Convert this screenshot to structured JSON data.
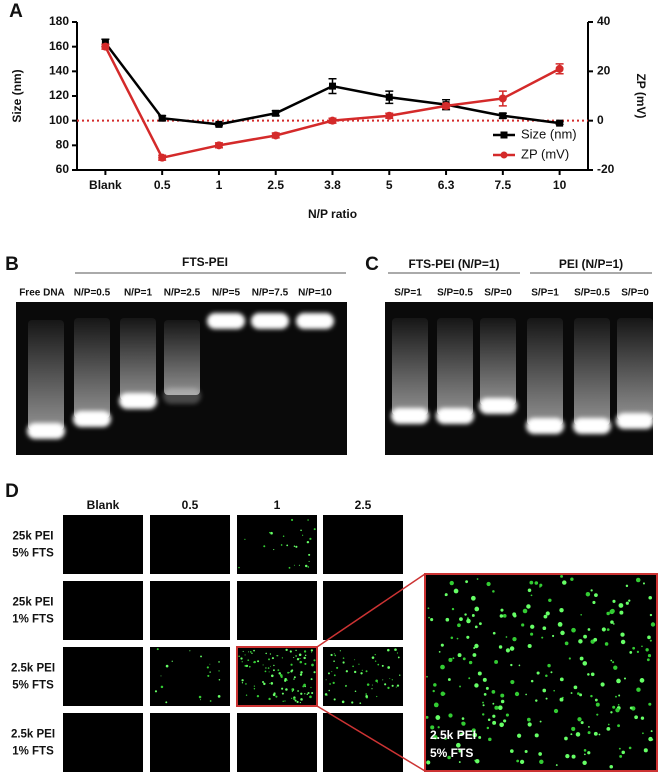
{
  "chart_data": {
    "type": "line",
    "panel_label": "A",
    "x_label": "N/P ratio",
    "y_label": "Size (nm)",
    "y2_label": "ZP (mV)",
    "categories": [
      "Blank",
      "0.5",
      "1",
      "2.5",
      "3.8",
      "5",
      "6.3",
      "7.5",
      "10"
    ],
    "ylim": [
      60,
      180
    ],
    "yticks": [
      60,
      80,
      100,
      120,
      140,
      160,
      180
    ],
    "y2lim": [
      -20,
      40
    ],
    "y2ticks": [
      -20,
      0,
      20,
      40
    ],
    "series": [
      {
        "name": "Size (nm)",
        "color": "#000000",
        "marker": "square",
        "axis": "y",
        "values": [
          163,
          102,
          97,
          106,
          128,
          119,
          113,
          104,
          98
        ],
        "errors": [
          3,
          2,
          1,
          2,
          6,
          5,
          4,
          2,
          1
        ]
      },
      {
        "name": "ZP (mV)",
        "color": "#d42a2a",
        "marker": "circle",
        "axis": "y2",
        "values": [
          30,
          -15,
          -10,
          -6,
          0,
          2,
          6,
          9,
          21
        ],
        "errors": [
          1,
          1,
          1,
          1,
          1,
          1,
          1,
          3,
          2
        ]
      }
    ],
    "reference_line": {
      "value": 0,
      "axis": "y2",
      "color": "#d42a2a",
      "style": "dotted"
    },
    "legend": "lower right"
  },
  "panel_b": {
    "label": "B",
    "group": "FTS-PEI",
    "lanes": [
      "Free DNA",
      "N/P=0.5",
      "N/P=1",
      "N/P=2.5",
      "N/P=5",
      "N/P=7.5",
      "N/P=10"
    ]
  },
  "panel_c": {
    "label": "C",
    "groups": [
      {
        "name": "FTS-PEI (N/P=1)",
        "lanes": [
          "S/P=1",
          "S/P=0.5",
          "S/P=0"
        ]
      },
      {
        "name": "PEI (N/P=1)",
        "lanes": [
          "S/P=1",
          "S/P=0.5",
          "S/P=0"
        ]
      }
    ]
  },
  "panel_d": {
    "label": "D",
    "columns": [
      "Blank",
      "0.5",
      "1",
      "2.5"
    ],
    "rows": [
      [
        "25k PEI",
        "5% FTS"
      ],
      [
        "25k PEI",
        "1% FTS"
      ],
      [
        "2.5k PEI",
        "5% FTS"
      ],
      [
        "2.5k PEI",
        "1% FTS"
      ]
    ],
    "inset_label": [
      "2.5k PEI",
      "5% FTS"
    ]
  }
}
